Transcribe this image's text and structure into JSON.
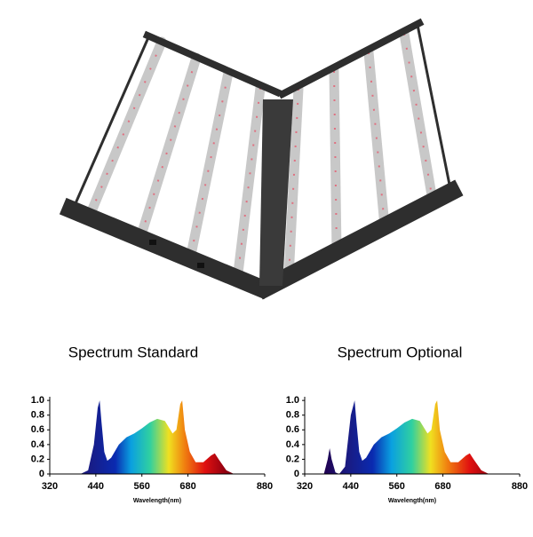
{
  "chart_data": [
    {
      "type": "area",
      "title": "Spectrum Standard",
      "x_label": "Wavelength(nm)",
      "x": [
        400,
        420,
        435,
        445,
        450,
        455,
        462,
        470,
        480,
        500,
        520,
        540,
        560,
        580,
        600,
        620,
        640,
        650,
        660,
        665,
        672,
        685,
        700,
        720,
        740,
        750,
        760,
        780,
        800
      ],
      "values": [
        0,
        0.05,
        0.4,
        0.9,
        1.0,
        0.7,
        0.3,
        0.18,
        0.22,
        0.4,
        0.5,
        0.55,
        0.62,
        0.7,
        0.75,
        0.72,
        0.55,
        0.6,
        0.95,
        1.0,
        0.6,
        0.3,
        0.16,
        0.16,
        0.25,
        0.28,
        0.2,
        0.05,
        0
      ],
      "xlim": [
        320,
        880
      ],
      "xticks": [
        320,
        440,
        560,
        680,
        880
      ],
      "ylim": [
        0,
        1.05
      ],
      "yticks": [
        0,
        {
          "value": 0.2,
          "label": "0.2"
        },
        {
          "value": 0.4,
          "label": "0.4"
        },
        {
          "value": 0.6,
          "label": "0.6"
        },
        {
          "value": 0.8,
          "label": "0.8"
        },
        {
          "value": 1,
          "label": "1.0"
        }
      ]
    },
    {
      "type": "area",
      "title": "Spectrum Optional",
      "x_label": "Wavelength(nm)",
      "x": [
        370,
        380,
        385,
        390,
        400,
        410,
        425,
        440,
        450,
        455,
        462,
        470,
        480,
        500,
        520,
        540,
        560,
        580,
        600,
        620,
        640,
        650,
        660,
        665,
        672,
        685,
        700,
        720,
        740,
        750,
        760,
        780,
        800
      ],
      "values": [
        0,
        0.2,
        0.35,
        0.2,
        0.02,
        0,
        0.1,
        0.8,
        1.0,
        0.7,
        0.3,
        0.18,
        0.22,
        0.4,
        0.5,
        0.55,
        0.62,
        0.7,
        0.75,
        0.72,
        0.55,
        0.6,
        0.95,
        1.0,
        0.6,
        0.3,
        0.16,
        0.16,
        0.25,
        0.28,
        0.2,
        0.05,
        0
      ],
      "xlim": [
        320,
        880
      ],
      "xticks": [
        320,
        440,
        560,
        680,
        880
      ],
      "ylim": [
        0,
        1.05
      ],
      "yticks": [
        0,
        {
          "value": 0.2,
          "label": "0.2"
        },
        {
          "value": 0.4,
          "label": "0.4"
        },
        {
          "value": 0.6,
          "label": "0.6"
        },
        {
          "value": 0.8,
          "label": "0.8"
        },
        {
          "value": 1,
          "label": "1.0"
        }
      ]
    }
  ]
}
